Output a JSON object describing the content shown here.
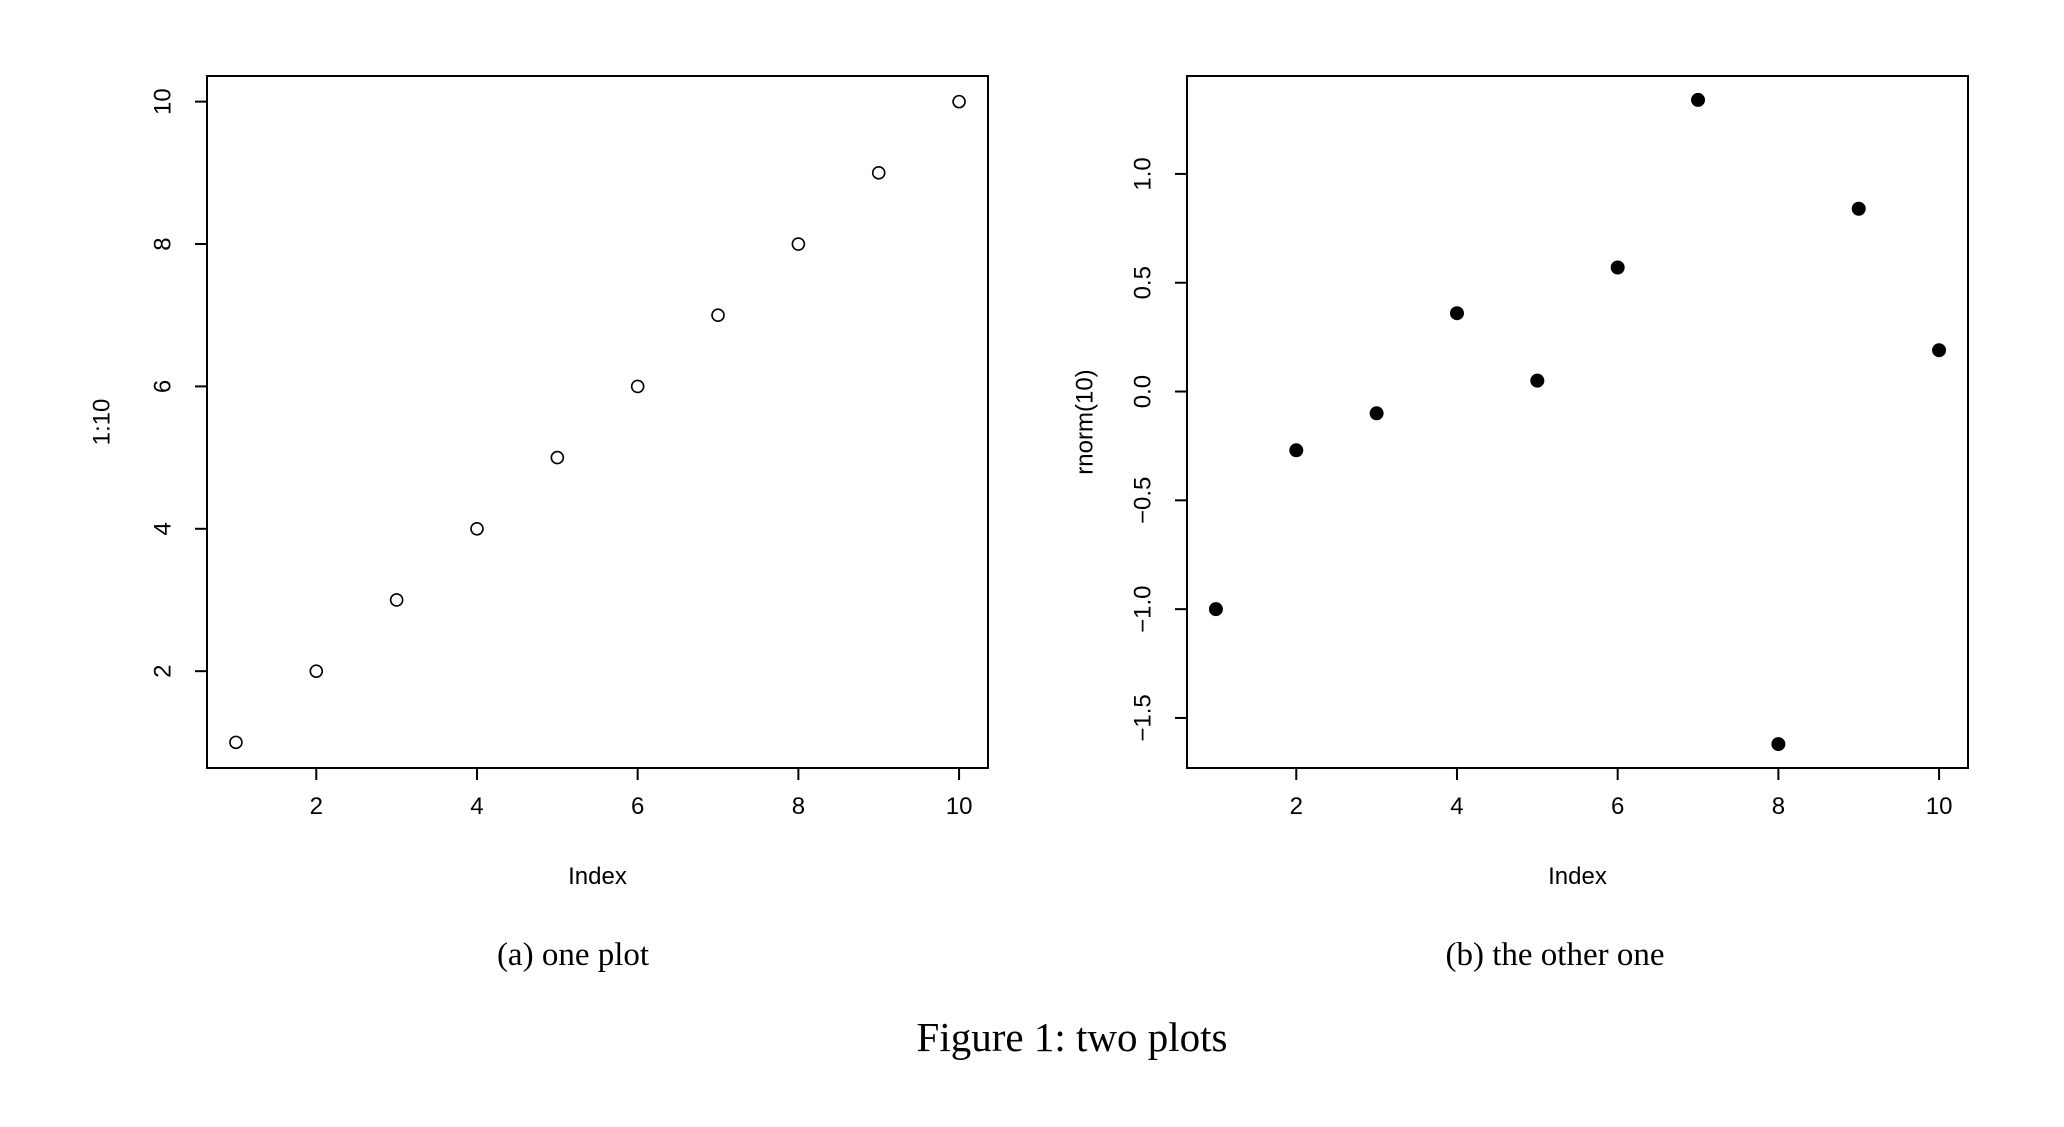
{
  "figure": {
    "caption": "Figure 1:  two plots"
  },
  "chart_data": [
    {
      "type": "scatter",
      "subcaption": "(a) one plot",
      "xlabel": "Index",
      "ylabel": "1:10",
      "x": [
        1,
        2,
        3,
        4,
        5,
        6,
        7,
        8,
        9,
        10
      ],
      "y": [
        1,
        2,
        3,
        4,
        5,
        6,
        7,
        8,
        9,
        10
      ],
      "xlim": [
        0.64,
        10.36
      ],
      "ylim": [
        0.64,
        10.36
      ],
      "xticks": [
        2,
        4,
        6,
        8,
        10
      ],
      "yticks": [
        2,
        4,
        6,
        8,
        10
      ],
      "marker": "open-circle",
      "grid": false,
      "legend": "none"
    },
    {
      "type": "scatter",
      "subcaption": "(b) the other one",
      "xlabel": "Index",
      "ylabel": "rnorm(10)",
      "x": [
        1,
        2,
        3,
        4,
        5,
        6,
        7,
        8,
        9,
        10
      ],
      "y": [
        -1.0,
        -0.27,
        -0.1,
        0.36,
        0.05,
        0.57,
        1.34,
        -1.62,
        0.84,
        0.19
      ],
      "xlim": [
        0.64,
        10.36
      ],
      "ylim": [
        -1.73,
        1.45
      ],
      "xticks": [
        2,
        4,
        6,
        8,
        10
      ],
      "yticks": [
        -1.5,
        -1.0,
        -0.5,
        0.0,
        0.5,
        1.0
      ],
      "ytick_labels": [
        "−1.5",
        "−1.0",
        "−0.5",
        "0.0",
        "0.5",
        "1.0"
      ],
      "marker": "filled-circle",
      "grid": false,
      "legend": "none"
    }
  ]
}
